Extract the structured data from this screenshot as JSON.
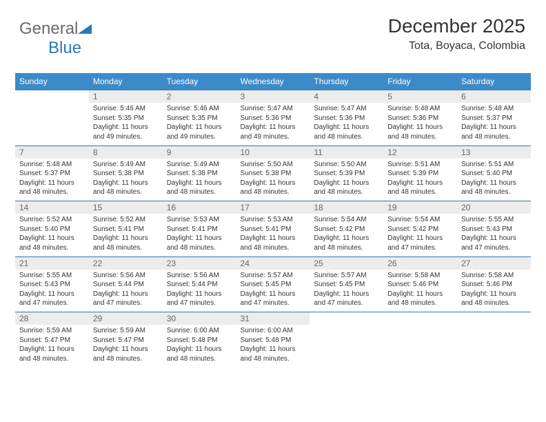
{
  "logo": {
    "text1": "General",
    "text2": "Blue"
  },
  "colors": {
    "header_bar": "#3b8bc9",
    "header_text": "#ffffff",
    "daynum_bg": "#ececec",
    "row_border": "#2a78b8",
    "title_color": "#333333"
  },
  "fonts": {
    "title_pt": 28,
    "subtitle_pt": 16,
    "header_pt": 12,
    "daynum_pt": 12,
    "body_pt": 10
  },
  "title": "December 2025",
  "subtitle": "Tota, Boyaca, Colombia",
  "days": [
    "Sunday",
    "Monday",
    "Tuesday",
    "Wednesday",
    "Thursday",
    "Friday",
    "Saturday"
  ],
  "weeks": [
    [
      {
        "n": "",
        "t": ""
      },
      {
        "n": "1",
        "t": "Sunrise: 5:46 AM\nSunset: 5:35 PM\nDaylight: 11 hours and 49 minutes."
      },
      {
        "n": "2",
        "t": "Sunrise: 5:46 AM\nSunset: 5:35 PM\nDaylight: 11 hours and 49 minutes."
      },
      {
        "n": "3",
        "t": "Sunrise: 5:47 AM\nSunset: 5:36 PM\nDaylight: 11 hours and 49 minutes."
      },
      {
        "n": "4",
        "t": "Sunrise: 5:47 AM\nSunset: 5:36 PM\nDaylight: 11 hours and 48 minutes."
      },
      {
        "n": "5",
        "t": "Sunrise: 5:48 AM\nSunset: 5:36 PM\nDaylight: 11 hours and 48 minutes."
      },
      {
        "n": "6",
        "t": "Sunrise: 5:48 AM\nSunset: 5:37 PM\nDaylight: 11 hours and 48 minutes."
      }
    ],
    [
      {
        "n": "7",
        "t": "Sunrise: 5:48 AM\nSunset: 5:37 PM\nDaylight: 11 hours and 48 minutes."
      },
      {
        "n": "8",
        "t": "Sunrise: 5:49 AM\nSunset: 5:38 PM\nDaylight: 11 hours and 48 minutes."
      },
      {
        "n": "9",
        "t": "Sunrise: 5:49 AM\nSunset: 5:38 PM\nDaylight: 11 hours and 48 minutes."
      },
      {
        "n": "10",
        "t": "Sunrise: 5:50 AM\nSunset: 5:38 PM\nDaylight: 11 hours and 48 minutes."
      },
      {
        "n": "11",
        "t": "Sunrise: 5:50 AM\nSunset: 5:39 PM\nDaylight: 11 hours and 48 minutes."
      },
      {
        "n": "12",
        "t": "Sunrise: 5:51 AM\nSunset: 5:39 PM\nDaylight: 11 hours and 48 minutes."
      },
      {
        "n": "13",
        "t": "Sunrise: 5:51 AM\nSunset: 5:40 PM\nDaylight: 11 hours and 48 minutes."
      }
    ],
    [
      {
        "n": "14",
        "t": "Sunrise: 5:52 AM\nSunset: 5:40 PM\nDaylight: 11 hours and 48 minutes."
      },
      {
        "n": "15",
        "t": "Sunrise: 5:52 AM\nSunset: 5:41 PM\nDaylight: 11 hours and 48 minutes."
      },
      {
        "n": "16",
        "t": "Sunrise: 5:53 AM\nSunset: 5:41 PM\nDaylight: 11 hours and 48 minutes."
      },
      {
        "n": "17",
        "t": "Sunrise: 5:53 AM\nSunset: 5:41 PM\nDaylight: 11 hours and 48 minutes."
      },
      {
        "n": "18",
        "t": "Sunrise: 5:54 AM\nSunset: 5:42 PM\nDaylight: 11 hours and 48 minutes."
      },
      {
        "n": "19",
        "t": "Sunrise: 5:54 AM\nSunset: 5:42 PM\nDaylight: 11 hours and 47 minutes."
      },
      {
        "n": "20",
        "t": "Sunrise: 5:55 AM\nSunset: 5:43 PM\nDaylight: 11 hours and 47 minutes."
      }
    ],
    [
      {
        "n": "21",
        "t": "Sunrise: 5:55 AM\nSunset: 5:43 PM\nDaylight: 11 hours and 47 minutes."
      },
      {
        "n": "22",
        "t": "Sunrise: 5:56 AM\nSunset: 5:44 PM\nDaylight: 11 hours and 47 minutes."
      },
      {
        "n": "23",
        "t": "Sunrise: 5:56 AM\nSunset: 5:44 PM\nDaylight: 11 hours and 47 minutes."
      },
      {
        "n": "24",
        "t": "Sunrise: 5:57 AM\nSunset: 5:45 PM\nDaylight: 11 hours and 47 minutes."
      },
      {
        "n": "25",
        "t": "Sunrise: 5:57 AM\nSunset: 5:45 PM\nDaylight: 11 hours and 47 minutes."
      },
      {
        "n": "26",
        "t": "Sunrise: 5:58 AM\nSunset: 5:46 PM\nDaylight: 11 hours and 48 minutes."
      },
      {
        "n": "27",
        "t": "Sunrise: 5:58 AM\nSunset: 5:46 PM\nDaylight: 11 hours and 48 minutes."
      }
    ],
    [
      {
        "n": "28",
        "t": "Sunrise: 5:59 AM\nSunset: 5:47 PM\nDaylight: 11 hours and 48 minutes."
      },
      {
        "n": "29",
        "t": "Sunrise: 5:59 AM\nSunset: 5:47 PM\nDaylight: 11 hours and 48 minutes."
      },
      {
        "n": "30",
        "t": "Sunrise: 6:00 AM\nSunset: 5:48 PM\nDaylight: 11 hours and 48 minutes."
      },
      {
        "n": "31",
        "t": "Sunrise: 6:00 AM\nSunset: 5:48 PM\nDaylight: 11 hours and 48 minutes."
      },
      {
        "n": "",
        "t": ""
      },
      {
        "n": "",
        "t": ""
      },
      {
        "n": "",
        "t": ""
      }
    ]
  ]
}
